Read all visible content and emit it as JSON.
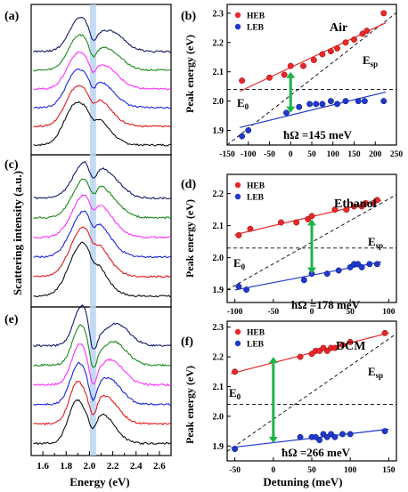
{
  "figure": {
    "left_ylabel": "Scattering intensity (a.u.)",
    "left_xlabel": "Energy (eV)",
    "right_ylabel": "Peak energy (eV)",
    "right_xlabel": "Detuning (meV)",
    "colors": {
      "HEB": "#e8282a",
      "LEB": "#1f39cc",
      "arrow": "#1db34a",
      "band": "#b9d4f0",
      "spectra": [
        "#151a6a",
        "#1a8a1a",
        "#ff2fff",
        "#1c25dd",
        "#e31b1b",
        "#111111"
      ]
    }
  },
  "chart_data": [
    {
      "type": "line",
      "panel_label": "(a)",
      "series_count": 6,
      "xlim": [
        1.5,
        2.7
      ],
      "highlight_x": 2.03
    },
    {
      "type": "scatter",
      "panel_label": "(b)",
      "medium": "Air",
      "legend": [
        "HEB",
        "LEB"
      ],
      "xlim": [
        -150,
        250
      ],
      "ylim": [
        1.85,
        2.33
      ],
      "xticks": [
        "-150",
        "-100",
        "-50",
        "0",
        "50",
        "100",
        "150",
        "200",
        "250"
      ],
      "yticks": [
        "1.9",
        "2.0",
        "2.1",
        "2.2",
        "2.3"
      ],
      "E0_label": "E",
      "E0_sub": "0",
      "Esp_label": "E",
      "Esp_sub": "sp",
      "splitting": "ħΩ =145 meV",
      "HEB": [
        [
          -115,
          2.07
        ],
        [
          -50,
          2.08
        ],
        [
          -15,
          2.09
        ],
        [
          0,
          2.12
        ],
        [
          30,
          2.12
        ],
        [
          55,
          2.14
        ],
        [
          75,
          2.16
        ],
        [
          95,
          2.17
        ],
        [
          110,
          2.18
        ],
        [
          130,
          2.2
        ],
        [
          150,
          2.21
        ],
        [
          170,
          2.23
        ],
        [
          180,
          2.24
        ],
        [
          220,
          2.3
        ]
      ],
      "LEB": [
        [
          -115,
          1.88
        ],
        [
          -100,
          1.9
        ],
        [
          -10,
          1.96
        ],
        [
          20,
          1.98
        ],
        [
          45,
          1.99
        ],
        [
          60,
          1.99
        ],
        [
          75,
          1.99
        ],
        [
          95,
          2.0
        ],
        [
          110,
          1.99
        ],
        [
          130,
          2.0
        ],
        [
          160,
          2.0
        ],
        [
          175,
          2.0
        ],
        [
          220,
          2.0
        ]
      ]
    },
    {
      "type": "line",
      "panel_label": "(c)",
      "series_count": 6,
      "xlim": [
        1.5,
        2.7
      ],
      "highlight_x": 2.03
    },
    {
      "type": "scatter",
      "panel_label": "(d)",
      "medium": "Ethanol",
      "legend": [
        "HEB",
        "LEB"
      ],
      "xlim": [
        -110,
        110
      ],
      "ylim": [
        1.86,
        2.26
      ],
      "xticks": [
        "-100",
        "-50",
        "0",
        "50",
        "100"
      ],
      "yticks": [
        "1.9",
        "2.0",
        "2.1",
        "2.2"
      ],
      "E0_label": "E",
      "E0_sub": "0",
      "Esp_label": "E",
      "Esp_sub": "sp",
      "splitting": "ħΩ =178 meV",
      "HEB": [
        [
          -95,
          2.07
        ],
        [
          -80,
          2.09
        ],
        [
          -40,
          2.11
        ],
        [
          -20,
          2.11
        ],
        [
          -5,
          2.12
        ],
        [
          0,
          2.13
        ],
        [
          30,
          2.15
        ],
        [
          45,
          2.15
        ],
        [
          55,
          2.16
        ],
        [
          65,
          2.16
        ],
        [
          70,
          2.17
        ],
        [
          80,
          2.17
        ],
        [
          85,
          2.18
        ]
      ],
      "LEB": [
        [
          -95,
          1.91
        ],
        [
          -85,
          1.9
        ],
        [
          -10,
          1.93
        ],
        [
          0,
          1.95
        ],
        [
          20,
          1.95
        ],
        [
          35,
          1.96
        ],
        [
          50,
          1.97
        ],
        [
          55,
          1.98
        ],
        [
          60,
          1.98
        ],
        [
          65,
          1.97
        ],
        [
          75,
          1.98
        ],
        [
          85,
          1.98
        ]
      ]
    },
    {
      "type": "line",
      "panel_label": "(e)",
      "series_count": 6,
      "xlim": [
        1.5,
        2.7
      ],
      "xticks": [
        "1.6",
        "1.8",
        "2.0",
        "2.2",
        "2.4",
        "2.6"
      ],
      "highlight_x": 2.03
    },
    {
      "type": "scatter",
      "panel_label": "(f)",
      "medium": "DCM",
      "legend": [
        "HEB",
        "LEB"
      ],
      "xlim": [
        -60,
        160
      ],
      "ylim": [
        1.85,
        2.32
      ],
      "xticks": [
        "-50",
        "0",
        "50",
        "100",
        "150"
      ],
      "yticks": [
        "1.9",
        "2.0",
        "2.1",
        "2.2",
        "2.3"
      ],
      "E0_label": "E",
      "E0_sub": "0",
      "Esp_label": "E",
      "Esp_sub": "sp",
      "splitting": "ħΩ =266 meV",
      "HEB": [
        [
          -50,
          2.15
        ],
        [
          35,
          2.2
        ],
        [
          50,
          2.21
        ],
        [
          55,
          2.22
        ],
        [
          60,
          2.22
        ],
        [
          65,
          2.23
        ],
        [
          70,
          2.22
        ],
        [
          75,
          2.23
        ],
        [
          80,
          2.23
        ],
        [
          90,
          2.24
        ],
        [
          100,
          2.25
        ],
        [
          145,
          2.28
        ]
      ],
      "LEB": [
        [
          -50,
          1.89
        ],
        [
          35,
          1.93
        ],
        [
          50,
          1.93
        ],
        [
          55,
          1.93
        ],
        [
          60,
          1.92
        ],
        [
          65,
          1.94
        ],
        [
          70,
          1.93
        ],
        [
          75,
          1.94
        ],
        [
          80,
          1.93
        ],
        [
          90,
          1.94
        ],
        [
          100,
          1.94
        ],
        [
          145,
          1.95
        ]
      ]
    }
  ]
}
